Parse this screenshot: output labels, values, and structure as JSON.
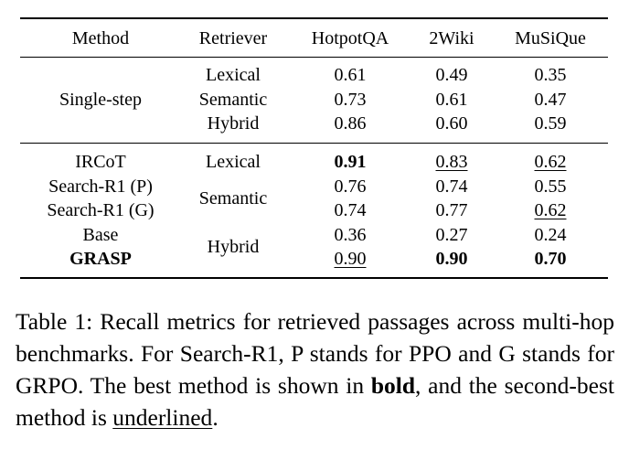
{
  "table": {
    "columns": [
      "Method",
      "Retriever",
      "HotpotQA",
      "2Wiki",
      "MuSiQue"
    ],
    "groups": [
      {
        "methods": [
          {
            "text": "Single-step",
            "rows": 3
          }
        ],
        "retrievers": [
          {
            "text": "Lexical",
            "rows": 1
          },
          {
            "text": "Semantic",
            "rows": 1
          },
          {
            "text": "Hybrid",
            "rows": 1
          }
        ],
        "scores": [
          [
            {
              "text": "0.61"
            },
            {
              "text": "0.49"
            },
            {
              "text": "0.35"
            }
          ],
          [
            {
              "text": "0.73"
            },
            {
              "text": "0.61"
            },
            {
              "text": "0.47"
            }
          ],
          [
            {
              "text": "0.86"
            },
            {
              "text": "0.60"
            },
            {
              "text": "0.59"
            }
          ]
        ]
      },
      {
        "methods": [
          {
            "text": "IRCoT",
            "rows": 1
          },
          {
            "text": "Search-R1 (P)",
            "rows": 1
          },
          {
            "text": "Search-R1 (G)",
            "rows": 1
          },
          {
            "text": "Base",
            "rows": 1
          },
          {
            "text": "GRASP",
            "rows": 1,
            "bold": true
          }
        ],
        "retrievers": [
          {
            "text": "Lexical",
            "rows": 1
          },
          {
            "text": "Semantic",
            "rows": 2
          },
          {
            "text": "Hybrid",
            "rows": 2
          }
        ],
        "scores": [
          [
            {
              "text": "0.91",
              "bold": true
            },
            {
              "text": "0.83",
              "underline": true
            },
            {
              "text": "0.62",
              "underline": true
            }
          ],
          [
            {
              "text": "0.76"
            },
            {
              "text": "0.74"
            },
            {
              "text": "0.55"
            }
          ],
          [
            {
              "text": "0.74"
            },
            {
              "text": "0.77"
            },
            {
              "text": "0.62",
              "underline": true
            }
          ],
          [
            {
              "text": "0.36"
            },
            {
              "text": "0.27"
            },
            {
              "text": "0.24"
            }
          ],
          [
            {
              "text": "0.90",
              "underline": true
            },
            {
              "text": "0.90",
              "bold": true
            },
            {
              "text": "0.70",
              "bold": true
            }
          ]
        ]
      }
    ]
  },
  "caption": [
    {
      "text": "Table 1:  Recall metrics for retrieved passages across multi-hop benchmarks.  For Search-R1, P stands for PPO and G stands for GRPO. The best method is shown in "
    },
    {
      "text": "bold",
      "bold": true
    },
    {
      "text": ", and the second-best method is "
    },
    {
      "text": "underlined",
      "underline": true
    },
    {
      "text": "."
    }
  ]
}
